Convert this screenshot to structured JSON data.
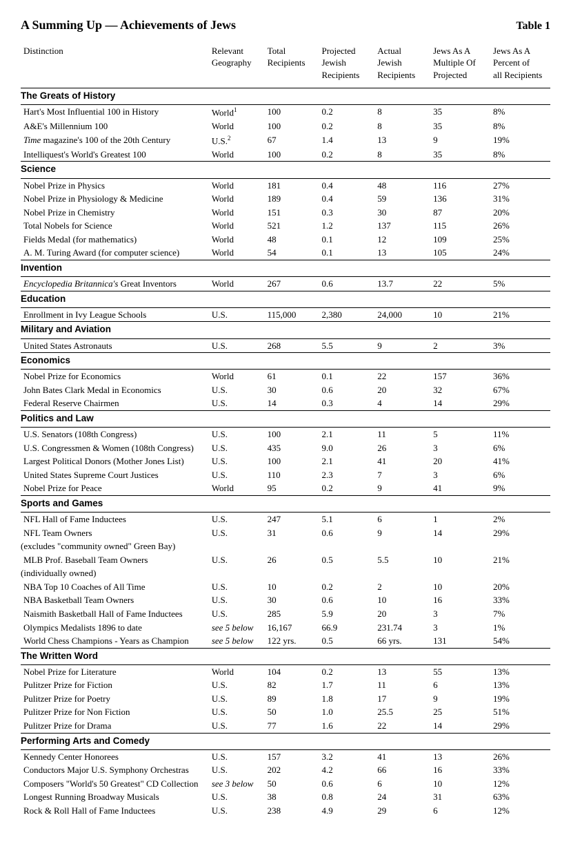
{
  "title": "A Summing Up — Achievements of Jews",
  "table_label": "Table 1",
  "columns": [
    "Distinction",
    "Relevant\nGeography",
    "Total\nRecipients",
    "Projected\nJewish\nRecipients",
    "Actual\nJewish\nRecipients",
    "Jews As A\nMultiple Of\nProjected",
    "Jews As A\nPercent of\nall Recipients"
  ],
  "sections": [
    {
      "name": "The Greats of History",
      "rows": [
        {
          "d": "Hart's Most Influential 100 in History",
          "g": "World",
          "sup": "1",
          "t": "100",
          "p": "0.2",
          "a": "8",
          "m": "35",
          "pc": "8%"
        },
        {
          "d": "A&E's Millennium 100",
          "g": "World",
          "t": "100",
          "p": "0.2",
          "a": "8",
          "m": "35",
          "pc": "8%"
        },
        {
          "d_html": "<span class='italic'>Time</span> magazine's 100 of the 20th Century",
          "g": "U.S.",
          "sup": "2",
          "t": "67",
          "p": "1.4",
          "a": "13",
          "m": "9",
          "pc": "19%"
        },
        {
          "d": "Intelliquest's World's Greatest 100",
          "g": "World",
          "t": "100",
          "p": "0.2",
          "a": "8",
          "m": "35",
          "pc": "8%"
        }
      ]
    },
    {
      "name": "Science",
      "rows": [
        {
          "d": "Nobel Prize in Physics",
          "g": "World",
          "t": "181",
          "p": "0.4",
          "a": "48",
          "m": "116",
          "pc": "27%"
        },
        {
          "d": "Nobel Prize in Physiology & Medicine",
          "g": "World",
          "t": "189",
          "p": "0.4",
          "a": "59",
          "m": "136",
          "pc": "31%"
        },
        {
          "d": "Nobel Prize in Chemistry",
          "g": "World",
          "t": "151",
          "p": "0.3",
          "a": "30",
          "m": "87",
          "pc": "20%"
        },
        {
          "d": "Total Nobels for Science",
          "g": "World",
          "t": "521",
          "p": "1.2",
          "a": "137",
          "m": "115",
          "pc": "26%"
        },
        {
          "d": "Fields Medal (for mathematics)",
          "g": "World",
          "t": "48",
          "p": "0.1",
          "a": "12",
          "m": "109",
          "pc": "25%"
        },
        {
          "d": "A. M. Turing Award (for computer science)",
          "g": "World",
          "t": "54",
          "p": "0.1",
          "a": "13",
          "m": "105",
          "pc": "24%"
        }
      ]
    },
    {
      "name": "Invention",
      "rows": [
        {
          "d_html": "<span class='italic'>Encyclopedia Britannica's</span> Great Inventors",
          "g": "World",
          "t": "267",
          "p": "0.6",
          "a": "13.7",
          "m": "22",
          "pc": "5%"
        }
      ]
    },
    {
      "name": "Education",
      "rows": [
        {
          "d": "Enrollment in Ivy League Schools",
          "g": "U.S.",
          "t": "115,000",
          "p": "2,380",
          "a": "24,000",
          "m": "10",
          "pc": "21%"
        }
      ]
    },
    {
      "name": "Military and Aviation",
      "rows": [
        {
          "d": "United States Astronauts",
          "g": "U.S.",
          "t": "268",
          "p": "5.5",
          "a": "9",
          "m": "2",
          "pc": "3%"
        }
      ]
    },
    {
      "name": "Economics",
      "rows": [
        {
          "d": "Nobel Prize for Economics",
          "g": "World",
          "t": "61",
          "p": "0.1",
          "a": "22",
          "m": "157",
          "pc": "36%"
        },
        {
          "d": "John Bates Clark Medal in Economics",
          "g": "U.S.",
          "t": "30",
          "p": "0.6",
          "a": "20",
          "m": "32",
          "pc": "67%"
        },
        {
          "d": "Federal Reserve Chairmen",
          "g": "U.S.",
          "t": "14",
          "p": "0.3",
          "a": "4",
          "m": "14",
          "pc": "29%"
        }
      ]
    },
    {
      "name": "Politics and Law",
      "rows": [
        {
          "d": "U.S. Senators (108th Congress)",
          "g": "U.S.",
          "t": "100",
          "p": "2.1",
          "a": "11",
          "m": "5",
          "pc": "11%"
        },
        {
          "d": "U.S. Congressmen & Women (108th Congress)",
          "g": "U.S.",
          "t": "435",
          "p": "9.0",
          "a": "26",
          "m": "3",
          "pc": "6%"
        },
        {
          "d": "Largest Political Donors (Mother Jones List)",
          "g": "U.S.",
          "t": "100",
          "p": "2.1",
          "a": "41",
          "m": "20",
          "pc": "41%"
        },
        {
          "d": "United States Supreme Court Justices",
          "g": "U.S.",
          "t": "110",
          "p": "2.3",
          "a": "7",
          "m": "3",
          "pc": "6%"
        },
        {
          "d": "Nobel Prize for Peace",
          "g": "World",
          "t": "95",
          "p": "0.2",
          "a": "9",
          "m": "41",
          "pc": "9%"
        }
      ]
    },
    {
      "name": "Sports and Games",
      "rows": [
        {
          "d": "NFL Hall of Fame Inductees",
          "g": "U.S.",
          "t": "247",
          "p": "5.1",
          "a": "6",
          "m": "1",
          "pc": "2%"
        },
        {
          "d": "NFL Team Owners",
          "g": "U.S.",
          "t": "31",
          "p": "0.6",
          "a": "9",
          "m": "14",
          "pc": "29%",
          "sub": "(excludes \"community owned\" Green Bay)"
        },
        {
          "d": "MLB Prof. Baseball Team Owners",
          "g": "U.S.",
          "t": "26",
          "p": "0.5",
          "a": "5.5",
          "m": "10",
          "pc": "21%",
          "sub": "(individually owned)"
        },
        {
          "d": "NBA Top 10 Coaches of All Time",
          "g": "U.S.",
          "t": "10",
          "p": "0.2",
          "a": " 2",
          "m": "10",
          "pc": "20%"
        },
        {
          "d": "NBA Basketball Team Owners",
          "g": "U.S.",
          "t": "30",
          "p": "0.6",
          "a": "10",
          "m": "16",
          "pc": "33%"
        },
        {
          "d": "Naismith Basketball Hall of Fame Inductees",
          "g": "U.S.",
          "t": "285",
          "p": "5.9",
          "a": "20",
          "m": "3",
          "pc": "7%"
        },
        {
          "d": "Olympics Medalists 1896 to date",
          "g_html": "<span class='italic'>see 5 below</span>",
          "t": "16,167",
          "p": "66.9",
          "a": "231.74",
          "m": "3",
          "pc": "1%"
        },
        {
          "d": "World Chess Champions - Years as Champion",
          "g_html": "<span class='italic'>see 5 below</span>",
          "t": "122 yrs.",
          "p": "0.5",
          "a": "66 yrs.",
          "m": "131",
          "pc": "54%"
        }
      ]
    },
    {
      "name": "The Written Word",
      "rows": [
        {
          "d": "Nobel Prize for Literature",
          "g": "World",
          "t": "104",
          "p": "0.2",
          "a": "13",
          "m": "55",
          "pc": "13%"
        },
        {
          "d": "Pulitzer Prize for Fiction",
          "g": "U.S.",
          "t": "82",
          "p": "1.7",
          "a": "11",
          "m": "6",
          "pc": "13%"
        },
        {
          "d": "Pulitzer Prize for Poetry",
          "g": "U.S.",
          "t": "89",
          "p": "1.8",
          "a": "17",
          "m": "9",
          "pc": "19%"
        },
        {
          "d": "Pulitzer Prize for Non Fiction",
          "g": "U.S.",
          "t": "50",
          "p": "1.0",
          "a": "25.5",
          "m": "25",
          "pc": "51%"
        },
        {
          "d": "Pulitzer Prize for Drama",
          "g": "U.S.",
          "t": "77",
          "p": "1.6",
          "a": "22",
          "m": "14",
          "pc": "29%"
        }
      ]
    },
    {
      "name": "Performing Arts and Comedy",
      "rows": [
        {
          "d": "Kennedy Center Honorees",
          "g": "U.S.",
          "t": "157",
          "p": "3.2",
          "a": "41",
          "m": "13",
          "pc": "26%"
        },
        {
          "d": "Conductors Major U.S. Symphony Orchestras",
          "g": "U.S.",
          "t": "202",
          "p": "4.2",
          "a": "66",
          "m": "16",
          "pc": "33%"
        },
        {
          "d": "Composers \"World's 50 Greatest\" CD Collection",
          "g_html": "<span class='italic'>see 3 below</span>",
          "t": "50",
          "p": "0.6",
          "a": "6",
          "m": "10",
          "pc": "12%"
        },
        {
          "d": "Longest Running Broadway Musicals",
          "g": "U.S.",
          "t": "38",
          "p": "0.8",
          "a": "24",
          "m": "31",
          "pc": "63%"
        },
        {
          "d": "Rock & Roll Hall of Fame Inductees",
          "g": "U.S.",
          "t": "238",
          "p": "4.9",
          "a": "29",
          "m": "6",
          "pc": "12%"
        }
      ]
    }
  ]
}
